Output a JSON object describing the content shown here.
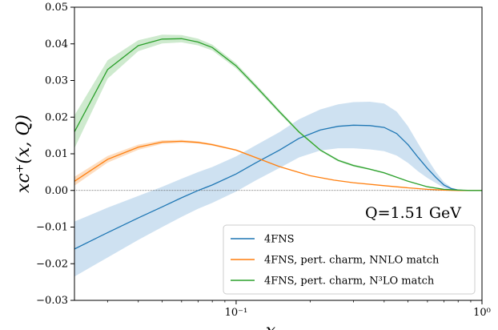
{
  "chart_data": {
    "type": "line",
    "xscale": "log",
    "xlim": [
      0.022,
      1.0
    ],
    "ylim": [
      -0.03,
      0.05
    ],
    "xlabel": "x",
    "ylabel": "xc⁺(x, Q)",
    "x_ticks": [
      {
        "value": 0.1,
        "label": "10⁻¹"
      },
      {
        "value": 1.0,
        "label": "10⁰"
      }
    ],
    "y_ticks": [
      {
        "value": -0.03,
        "label": "−0.03"
      },
      {
        "value": -0.02,
        "label": "−0.02"
      },
      {
        "value": -0.01,
        "label": "−0.01"
      },
      {
        "value": 0.0,
        "label": "0.00"
      },
      {
        "value": 0.01,
        "label": "0.01"
      },
      {
        "value": 0.02,
        "label": "0.02"
      },
      {
        "value": 0.03,
        "label": "0.03"
      },
      {
        "value": 0.04,
        "label": "0.04"
      },
      {
        "value": 0.05,
        "label": "0.05"
      }
    ],
    "annotation": "Q=1.51 GeV",
    "legend_position": "bottom-right",
    "zero_line": true,
    "series": [
      {
        "name": "4FNS",
        "color": "#1f77b4",
        "band_color": "#c6dcee",
        "x": [
          0.022,
          0.03,
          0.04,
          0.05,
          0.06,
          0.07,
          0.08,
          0.1,
          0.12,
          0.15,
          0.18,
          0.22,
          0.26,
          0.3,
          0.35,
          0.4,
          0.45,
          0.5,
          0.55,
          0.6,
          0.65,
          0.7,
          0.75,
          0.8,
          0.85,
          0.9,
          1.0
        ],
        "y": [
          -0.016,
          -0.0115,
          -0.0075,
          -0.0045,
          -0.002,
          0.0,
          0.0015,
          0.0045,
          0.0075,
          0.011,
          0.0142,
          0.0165,
          0.0175,
          0.0178,
          0.0177,
          0.0172,
          0.0155,
          0.0125,
          0.009,
          0.006,
          0.0035,
          0.0015,
          0.0005,
          0.0001,
          0.0,
          0.0,
          0.0
        ],
        "band_width": [
          0.0075,
          0.0068,
          0.006,
          0.0055,
          0.0052,
          0.005,
          0.0049,
          0.0048,
          0.0048,
          0.0049,
          0.0052,
          0.0056,
          0.006,
          0.0063,
          0.0065,
          0.0065,
          0.006,
          0.005,
          0.0038,
          0.0026,
          0.0015,
          0.0008,
          0.0003,
          0.0001,
          0.0,
          0.0,
          0.0
        ]
      },
      {
        "name": "4FNS, pert. charm, NNLO match",
        "color": "#ff7f0e",
        "band_color": "#fdd7b5",
        "x": [
          0.022,
          0.03,
          0.04,
          0.05,
          0.06,
          0.07,
          0.08,
          0.1,
          0.12,
          0.15,
          0.2,
          0.25,
          0.3,
          0.4,
          0.5,
          0.6,
          0.7,
          0.8,
          0.9,
          1.0
        ],
        "y": [
          0.0025,
          0.0085,
          0.0118,
          0.0132,
          0.0134,
          0.0131,
          0.0125,
          0.011,
          0.009,
          0.0065,
          0.004,
          0.0028,
          0.0021,
          0.0013,
          0.0007,
          0.0003,
          0.0001,
          0.0,
          0.0,
          0.0
        ],
        "band_width": [
          0.0012,
          0.0009,
          0.0007,
          0.0005,
          0.0004,
          0.0003,
          0.0003,
          0.0002,
          0.0002,
          0.0001,
          0.0001,
          0.0001,
          0.0001,
          0.0,
          0.0,
          0.0,
          0.0,
          0.0,
          0.0,
          0.0
        ]
      },
      {
        "name": "4FNS, pert. charm, N³LO match",
        "color": "#2ca02c",
        "band_color": "#c5e6c5",
        "x": [
          0.022,
          0.03,
          0.04,
          0.05,
          0.06,
          0.07,
          0.08,
          0.1,
          0.12,
          0.15,
          0.18,
          0.22,
          0.26,
          0.3,
          0.35,
          0.4,
          0.5,
          0.6,
          0.7,
          0.8,
          0.9,
          1.0
        ],
        "y": [
          0.016,
          0.033,
          0.0395,
          0.0413,
          0.0414,
          0.0405,
          0.039,
          0.034,
          0.0285,
          0.0215,
          0.016,
          0.011,
          0.0082,
          0.0068,
          0.0058,
          0.0048,
          0.0025,
          0.001,
          0.0003,
          0.0001,
          0.0,
          0.0
        ],
        "band_width": [
          0.0045,
          0.0025,
          0.0015,
          0.0012,
          0.001,
          0.0009,
          0.0008,
          0.0007,
          0.0006,
          0.0005,
          0.0004,
          0.0003,
          0.0003,
          0.0003,
          0.0002,
          0.0002,
          0.0001,
          0.0001,
          0.0,
          0.0,
          0.0,
          0.0
        ]
      }
    ]
  }
}
